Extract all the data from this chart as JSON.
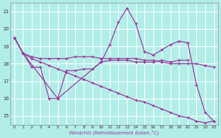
{
  "background_color": "#b2eee8",
  "grid_color": "#ffffff",
  "line_color": "#993399",
  "xlabel": "Windchill (Refroidissement éolien,°C)",
  "yticks": [
    15,
    16,
    17,
    18,
    19,
    20,
    21
  ],
  "xticks": [
    0,
    1,
    2,
    3,
    4,
    5,
    6,
    7,
    8,
    9,
    10,
    11,
    12,
    13,
    14,
    15,
    16,
    17,
    18,
    19,
    20,
    21,
    22,
    23
  ],
  "xlim": [
    -0.5,
    23.5
  ],
  "ylim": [
    14.5,
    21.5
  ],
  "series": [
    {
      "x": [
        0,
        1,
        2,
        3,
        4,
        5,
        6,
        7,
        8,
        9,
        10,
        11,
        12,
        13,
        14,
        15,
        16,
        17,
        18,
        19,
        20
      ],
      "y": [
        19.5,
        18.6,
        17.8,
        17.8,
        16.0,
        16.0,
        17.6,
        17.6,
        17.7,
        17.7,
        18.1,
        18.2,
        18.2,
        18.2,
        18.1,
        18.1,
        18.1,
        18.2,
        18.1,
        18.2,
        18.2
      ]
    },
    {
      "x": [
        0,
        1,
        2,
        3,
        4,
        5,
        6,
        7,
        8,
        9,
        10,
        11,
        12,
        13,
        14,
        15,
        16,
        17,
        18,
        19,
        20,
        21,
        22,
        23
      ],
      "y": [
        19.5,
        18.6,
        18.4,
        18.3,
        18.3,
        18.3,
        18.3,
        18.4,
        18.4,
        18.4,
        18.3,
        18.3,
        18.3,
        18.3,
        18.3,
        18.2,
        18.2,
        18.1,
        18.0,
        18.0,
        18.0,
        18.0,
        17.9,
        17.8
      ]
    },
    {
      "x": [
        0,
        1,
        5,
        10,
        11,
        12,
        13,
        14,
        15,
        16,
        17,
        18,
        19,
        20,
        21,
        22,
        23
      ],
      "y": [
        19.5,
        18.6,
        16.0,
        18.1,
        19.1,
        20.4,
        21.2,
        20.3,
        18.7,
        18.5,
        18.8,
        19.1,
        19.3,
        19.2,
        16.8,
        15.2,
        14.7
      ]
    },
    {
      "x": [
        0,
        1,
        2,
        3,
        4,
        5,
        6,
        7,
        8,
        9,
        10,
        11,
        12,
        13,
        14,
        15,
        16,
        17,
        18,
        19,
        20,
        21,
        22,
        23
      ],
      "y": [
        19.5,
        18.6,
        18.3,
        18.1,
        17.9,
        17.7,
        17.5,
        17.3,
        17.1,
        16.9,
        16.7,
        16.5,
        16.3,
        16.1,
        15.9,
        15.8,
        15.6,
        15.4,
        15.2,
        15.0,
        14.9,
        14.7,
        14.6,
        14.7
      ]
    }
  ]
}
